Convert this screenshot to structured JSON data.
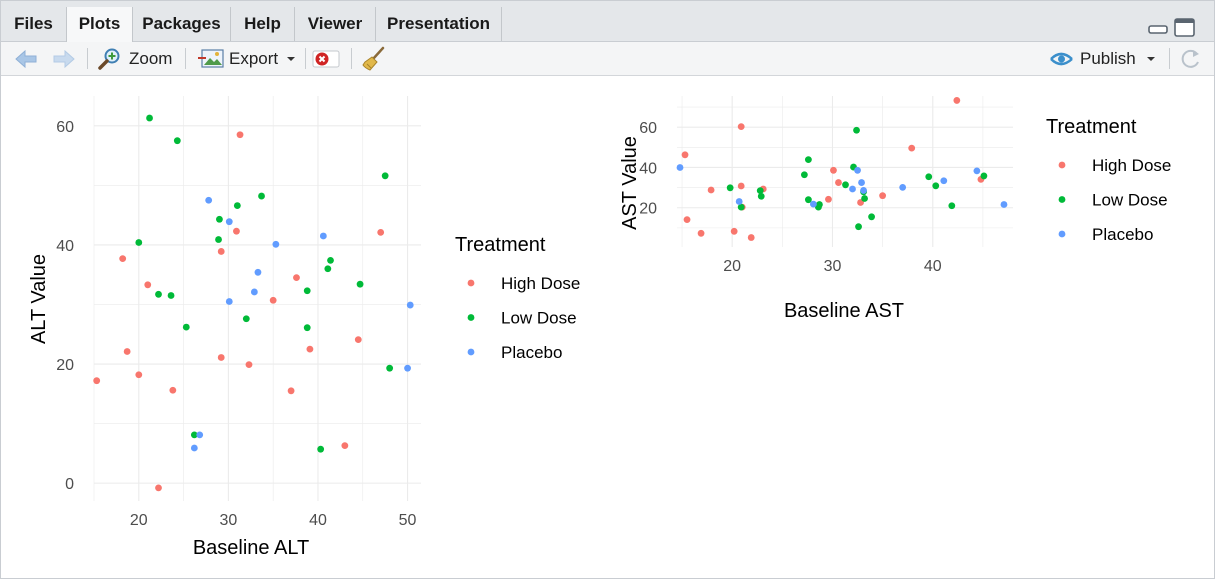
{
  "tabs": [
    {
      "label": "Files"
    },
    {
      "label": "Plots"
    },
    {
      "label": "Packages"
    },
    {
      "label": "Help"
    },
    {
      "label": "Viewer"
    },
    {
      "label": "Presentation"
    }
  ],
  "active_tab": "Plots",
  "toolbar": {
    "zoom_label": "Zoom",
    "export_label": "Export",
    "publish_label": "Publish"
  },
  "colors": {
    "High Dose": "#F8766D",
    "Low Dose": "#00BA38",
    "Placebo": "#619CFF"
  },
  "chart_data": [
    {
      "type": "scatter",
      "xlabel": "Baseline ALT",
      "ylabel": "ALT Value",
      "xlim": [
        15,
        51.5
      ],
      "ylim": [
        -3,
        65
      ],
      "xticks": [
        20,
        30,
        40,
        50
      ],
      "yticks": [
        0,
        20,
        40,
        60
      ],
      "grid": true,
      "legend": {
        "title": "Treatment",
        "placement": "right"
      },
      "series": [
        {
          "name": "High Dose",
          "points": [
            [
              31.3,
              58.5
            ],
            [
              18.2,
              37.7
            ],
            [
              21.0,
              33.3
            ],
            [
              18.7,
              22.1
            ],
            [
              20.0,
              18.2
            ],
            [
              15.3,
              17.2
            ],
            [
              23.8,
              15.6
            ],
            [
              22.2,
              -0.8
            ],
            [
              29.2,
              38.9
            ],
            [
              30.9,
              42.3
            ],
            [
              29.2,
              21.1
            ],
            [
              32.3,
              19.9
            ],
            [
              35.0,
              30.7
            ],
            [
              37.6,
              34.5
            ],
            [
              37.0,
              15.5
            ],
            [
              39.1,
              22.5
            ],
            [
              44.5,
              24.1
            ],
            [
              47.0,
              42.1
            ],
            [
              43.0,
              6.3
            ]
          ]
        },
        {
          "name": "Low Dose",
          "points": [
            [
              21.2,
              61.3
            ],
            [
              24.3,
              57.5
            ],
            [
              20.0,
              40.4
            ],
            [
              22.2,
              31.7
            ],
            [
              23.6,
              31.5
            ],
            [
              25.3,
              26.2
            ],
            [
              29.0,
              44.3
            ],
            [
              28.9,
              40.9
            ],
            [
              31.0,
              46.6
            ],
            [
              33.7,
              48.2
            ],
            [
              32.0,
              27.6
            ],
            [
              38.8,
              32.3
            ],
            [
              38.8,
              26.1
            ],
            [
              41.4,
              37.4
            ],
            [
              41.1,
              36.0
            ],
            [
              44.7,
              33.4
            ],
            [
              47.5,
              51.6
            ],
            [
              48.0,
              19.3
            ],
            [
              40.3,
              5.7
            ],
            [
              26.2,
              8.1
            ]
          ]
        },
        {
          "name": "Placebo",
          "points": [
            [
              27.8,
              47.5
            ],
            [
              30.1,
              43.9
            ],
            [
              35.3,
              40.1
            ],
            [
              40.6,
              41.5
            ],
            [
              33.3,
              35.4
            ],
            [
              30.1,
              30.5
            ],
            [
              32.9,
              32.1
            ],
            [
              26.2,
              5.9
            ],
            [
              26.8,
              8.1
            ],
            [
              50.0,
              19.3
            ],
            [
              50.3,
              29.9
            ]
          ]
        }
      ]
    },
    {
      "type": "scatter",
      "xlabel": "Baseline AST",
      "ylabel": "AST Value",
      "xlim": [
        14.5,
        48
      ],
      "ylim": [
        0.5,
        75.5
      ],
      "xticks": [
        20,
        30,
        40
      ],
      "yticks": [
        20,
        40,
        60
      ],
      "grid": true,
      "legend": {
        "title": "Treatment",
        "placement": "right"
      },
      "series": [
        {
          "name": "High Dose",
          "points": [
            [
              15.3,
              46.3
            ],
            [
              15.5,
              14.1
            ],
            [
              16.9,
              7.3
            ],
            [
              17.9,
              28.8
            ],
            [
              20.2,
              8.3
            ],
            [
              20.9,
              60.3
            ],
            [
              20.9,
              30.8
            ],
            [
              21.0,
              20.3
            ],
            [
              21.9,
              5.2
            ],
            [
              23.1,
              29.3
            ],
            [
              29.6,
              24.2
            ],
            [
              30.1,
              38.6
            ],
            [
              32.8,
              22.6
            ],
            [
              35.0,
              26.0
            ],
            [
              37.9,
              49.6
            ],
            [
              42.4,
              73.3
            ],
            [
              44.8,
              34.1
            ],
            [
              30.6,
              32.5
            ]
          ]
        },
        {
          "name": "Low Dose",
          "points": [
            [
              19.8,
              29.9
            ],
            [
              20.9,
              20.3
            ],
            [
              22.8,
              28.5
            ],
            [
              22.9,
              25.7
            ],
            [
              27.2,
              36.4
            ],
            [
              27.6,
              43.9
            ],
            [
              27.6,
              24.0
            ],
            [
              28.6,
              20.3
            ],
            [
              28.7,
              21.6
            ],
            [
              31.3,
              31.4
            ],
            [
              32.1,
              40.2
            ],
            [
              32.4,
              58.5
            ],
            [
              32.6,
              10.6
            ],
            [
              33.2,
              24.6
            ],
            [
              33.9,
              15.5
            ],
            [
              33.1,
              27.9
            ],
            [
              39.6,
              35.4
            ],
            [
              40.3,
              30.9
            ],
            [
              41.9,
              21.0
            ],
            [
              45.1,
              35.8
            ]
          ]
        },
        {
          "name": "Placebo",
          "points": [
            [
              14.8,
              40.0
            ],
            [
              20.7,
              23.1
            ],
            [
              28.1,
              21.8
            ],
            [
              32.0,
              29.3
            ],
            [
              32.5,
              38.6
            ],
            [
              32.9,
              32.5
            ],
            [
              33.1,
              28.6
            ],
            [
              37.0,
              30.1
            ],
            [
              41.1,
              33.4
            ],
            [
              44.4,
              38.3
            ],
            [
              47.1,
              21.6
            ]
          ]
        }
      ]
    }
  ]
}
